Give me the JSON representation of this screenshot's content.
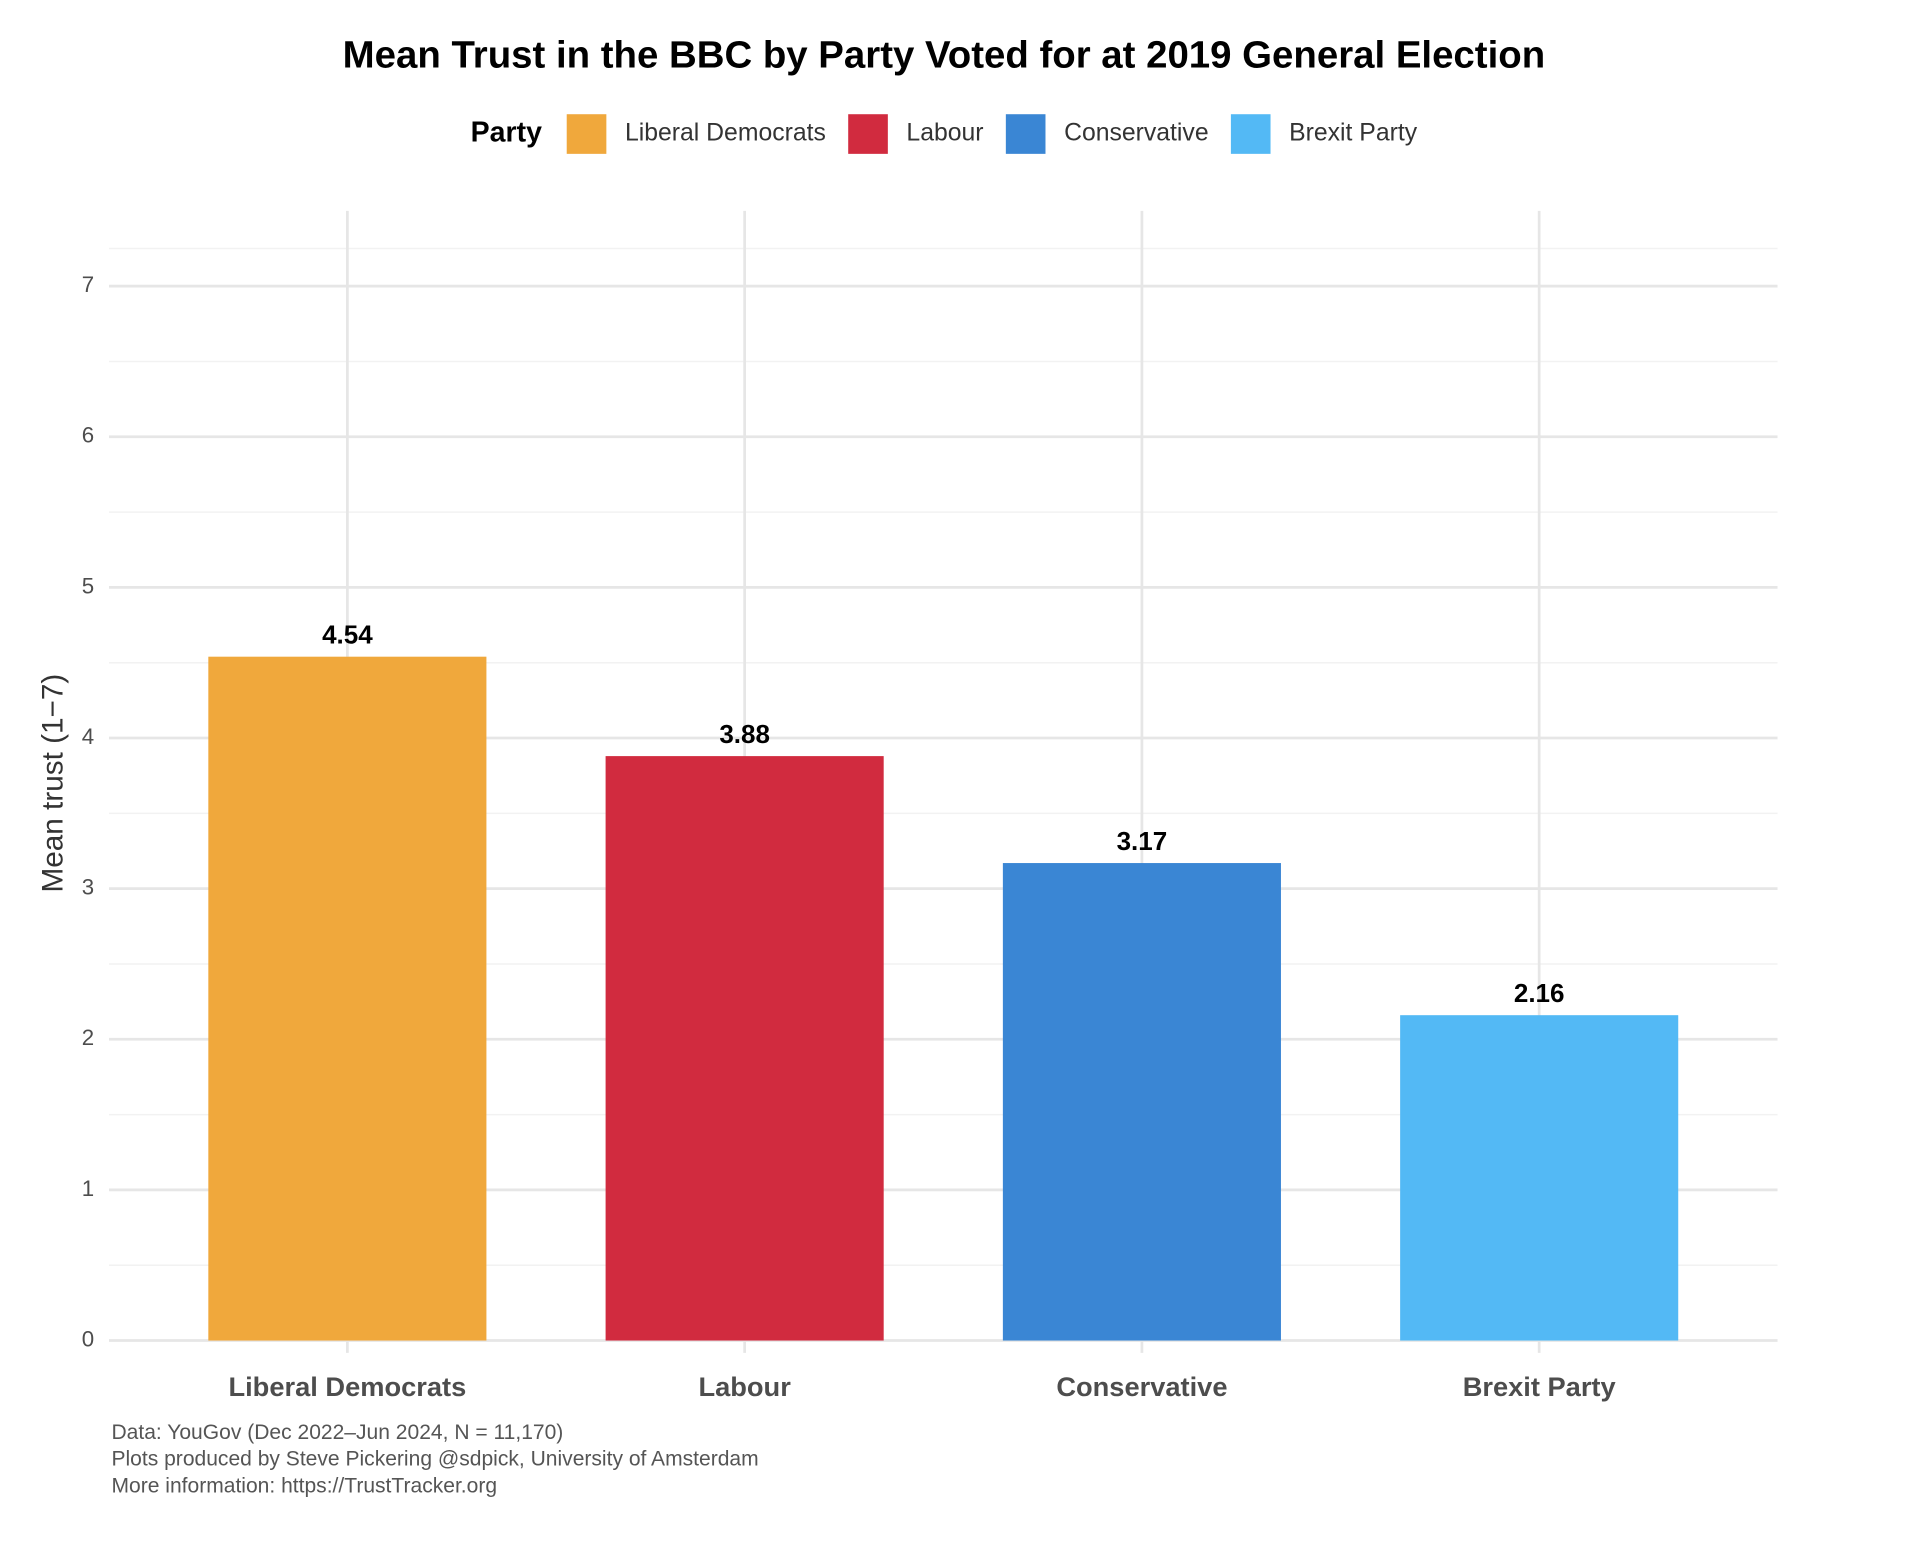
{
  "chart_data": {
    "type": "bar",
    "title": "Mean Trust in the BBC by Party Voted for at 2019 General Election",
    "legend_title": "Party",
    "categories": [
      "Liberal Democrats",
      "Labour",
      "Conservative",
      "Brexit Party"
    ],
    "values": [
      4.54,
      3.88,
      3.17,
      2.16
    ],
    "colors": [
      "#f0a83c",
      "#d12b3f",
      "#3a86d4",
      "#53b9f5"
    ],
    "y_label": "Mean trust (1−7)",
    "ylim": [
      0,
      7.5
    ],
    "yticks": [
      0,
      1,
      2,
      3,
      4,
      5,
      6,
      7
    ],
    "grid": true,
    "legend_position": "top",
    "caption": [
      "Data: YouGov (Dec 2022–Jun 2024, N = 11,170)",
      "Plots produced by Steve Pickering @sdpick, University of Amsterdam",
      "More information: https://TrustTracker.org"
    ]
  }
}
